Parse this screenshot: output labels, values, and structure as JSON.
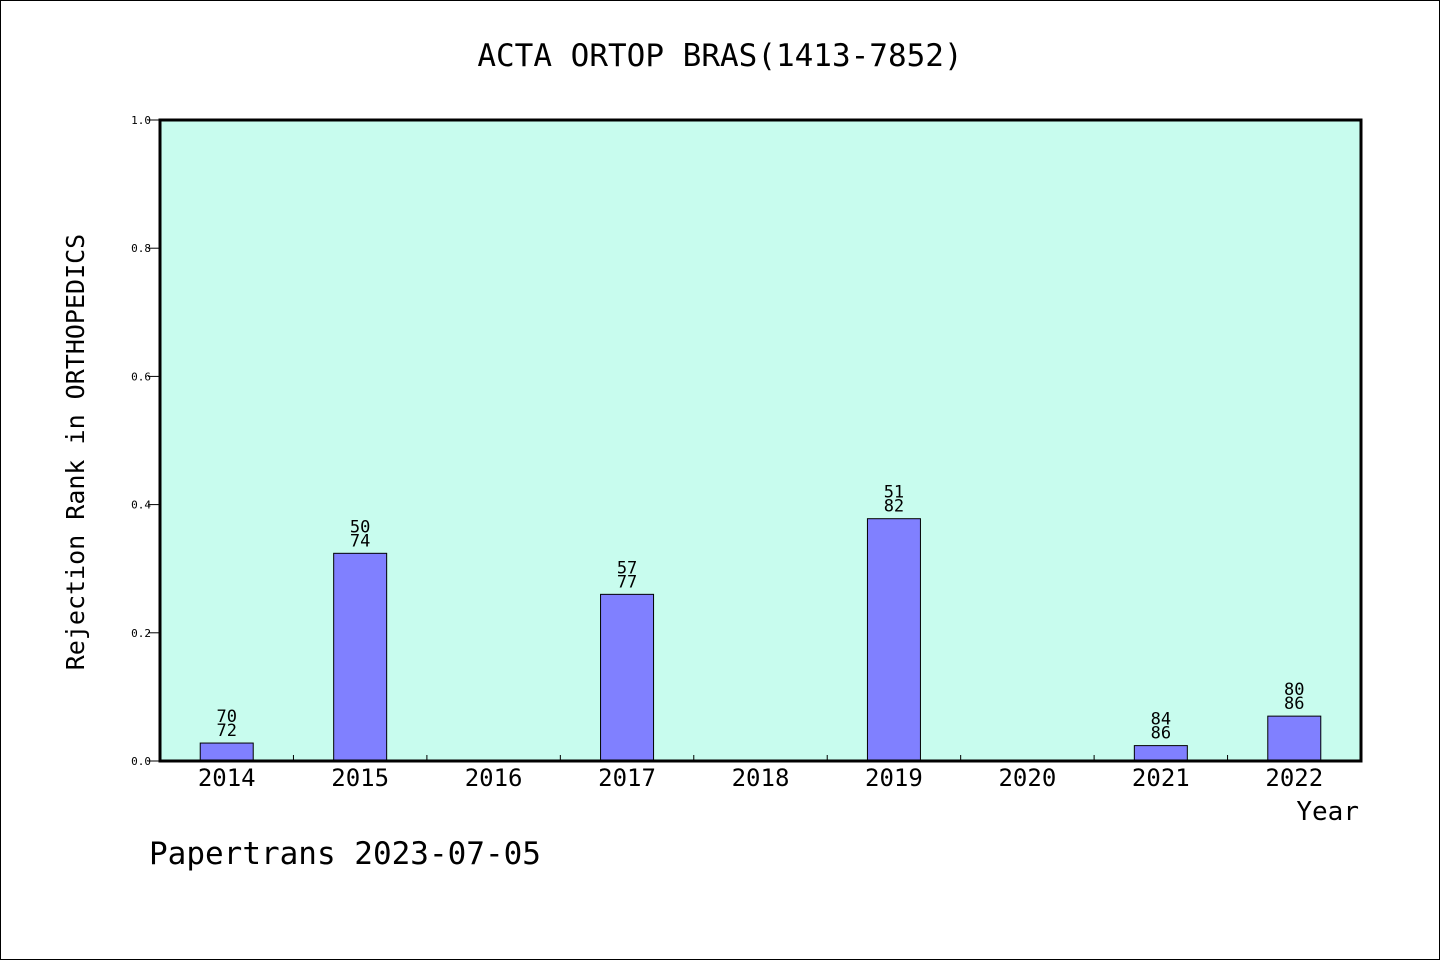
{
  "chart_data": {
    "type": "bar",
    "title": "ACTA ORTOP BRAS(1413-7852)",
    "xlabel": "Year",
    "ylabel": "Rejection Rank in ORTHOPEDICS",
    "footer": "Papertrans 2023-07-05",
    "categories": [
      "2014",
      "2015",
      "2016",
      "2017",
      "2018",
      "2019",
      "2020",
      "2021",
      "2022"
    ],
    "values": [
      0.028,
      0.324,
      null,
      0.26,
      null,
      0.378,
      null,
      0.024,
      0.07
    ],
    "labels_top": [
      "70",
      "50",
      "",
      "57",
      "",
      "51",
      "",
      "84",
      "80"
    ],
    "labels_bottom": [
      "72",
      "74",
      "",
      "77",
      "",
      "82",
      "",
      "86",
      "86"
    ],
    "ylim": [
      0,
      1.0
    ],
    "yticks": [
      "0.0",
      "0.2",
      "0.4",
      "0.6",
      "0.8",
      "1.0"
    ],
    "grid": false,
    "colors": {
      "plot_bg": "#c8fcee",
      "bar": "#8080ff",
      "axis": "#000000"
    }
  }
}
